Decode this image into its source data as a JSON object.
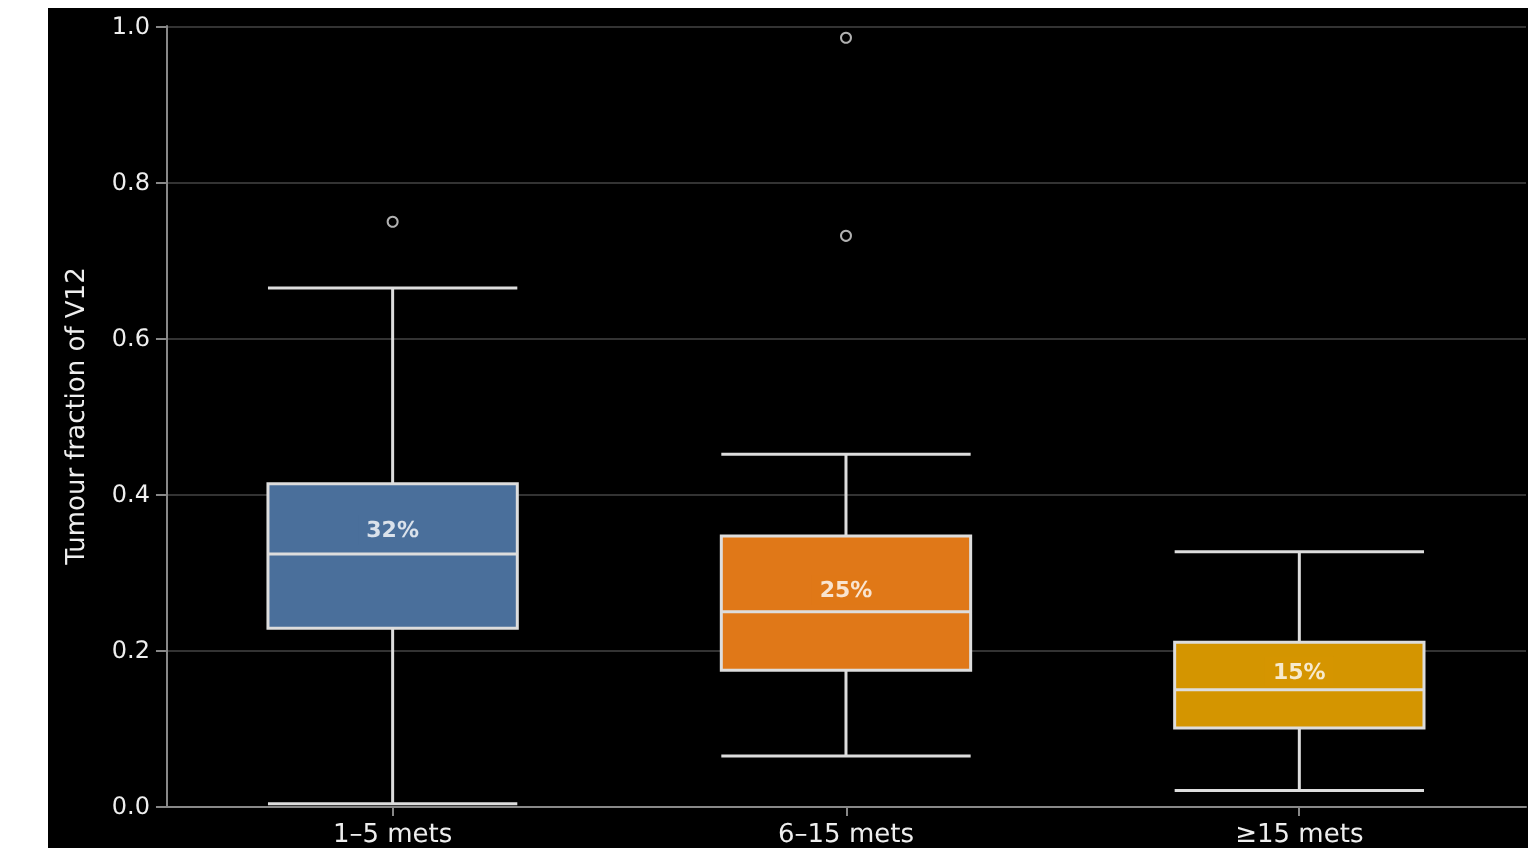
{
  "chart_data": {
    "type": "box",
    "ylabel": "Tumour fraction of V12",
    "categories": [
      "1–5 mets",
      "6–15 mets",
      "≥15 mets"
    ],
    "boxes": [
      {
        "low": 0.003,
        "q1": 0.228,
        "median": 0.323,
        "q3": 0.413,
        "high": 0.664,
        "outliers": [
          0.749
        ]
      },
      {
        "low": 0.064,
        "q1": 0.174,
        "median": 0.249,
        "q3": 0.346,
        "high": 0.451,
        "outliers": [
          0.731,
          0.985
        ]
      },
      {
        "low": 0.02,
        "q1": 0.1,
        "median": 0.149,
        "q3": 0.21,
        "high": 0.326
      }
    ],
    "colors": [
      "#4a6f9b",
      "#e07818",
      "#d49500"
    ],
    "annotations": [
      {
        "text": "32%",
        "x": "1–5 mets",
        "y": 0.354
      },
      {
        "text": "25%",
        "x": "6–15 mets",
        "y": 0.277
      },
      {
        "text": "15%",
        "x": "≥15 mets",
        "y": 0.172
      }
    ],
    "ylim": [
      0,
      1
    ],
    "yticks": [
      {
        "value": 0,
        "label": "0.0"
      },
      0.2,
      0.4,
      0.6,
      0.8,
      {
        "value": 1,
        "label": "1.0"
      }
    ],
    "grid": "y"
  }
}
